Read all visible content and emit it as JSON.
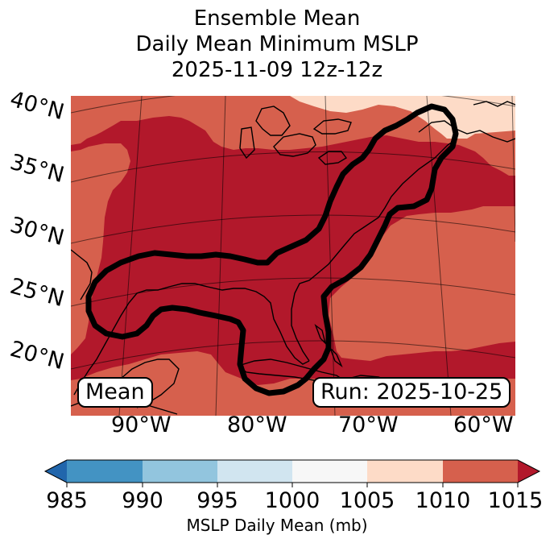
{
  "title": {
    "line1": "Ensemble Mean",
    "line2": "Daily Mean Minimum MSLP",
    "line3": "2025-11-09 12z-12z"
  },
  "map": {
    "lat_labels": [
      "40°N",
      "35°N",
      "30°N",
      "25°N",
      "20°N"
    ],
    "lon_labels": [
      "90°W",
      "80°W",
      "70°W",
      "60°W"
    ],
    "left_box_label": "Mean",
    "right_box_label": "Run: 2025-10-25",
    "colors": {
      "band_1005_1010": "#fddbc7",
      "band_1010_1015": "#d6604d",
      "band_gt_1015": "#b2182b",
      "contour": "#000000"
    }
  },
  "colorbar": {
    "label": "MSLP Daily Mean (mb)",
    "ticks": [
      "985",
      "990",
      "995",
      "1000",
      "1005",
      "1010",
      "1015"
    ],
    "colors": [
      "#2166ac",
      "#4393c3",
      "#92c5de",
      "#d1e5f0",
      "#f7f7f7",
      "#fddbc7",
      "#d6604d",
      "#b2182b"
    ]
  }
}
